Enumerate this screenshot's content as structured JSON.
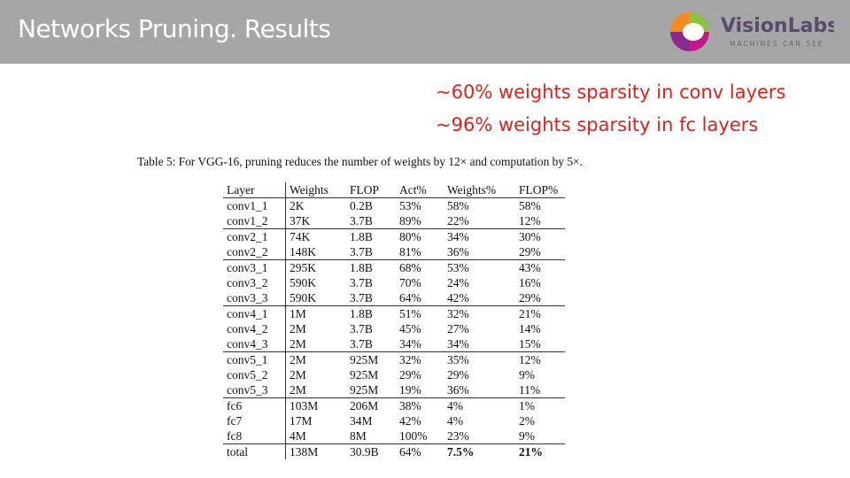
{
  "header": {
    "title": "Networks Pruning. Results",
    "logo": {
      "name": "VisionLabs",
      "tagline": "MACHINES CAN SEE"
    }
  },
  "highlights": [
    "~60% weights sparsity in conv layers",
    "~96% weights sparsity in fc layers"
  ],
  "table": {
    "caption": "Table 5: For VGG-16, pruning reduces the number of weights by 12× and computation by 5×.",
    "columns": [
      "Layer",
      "Weights",
      "FLOP",
      "Act%",
      "Weights%",
      "FLOP%"
    ],
    "rows": [
      [
        "conv1_1",
        "2K",
        "0.2B",
        "53%",
        "58%",
        "58%"
      ],
      [
        "conv1_2",
        "37K",
        "3.7B",
        "89%",
        "22%",
        "12%"
      ],
      [
        "conv2_1",
        "74K",
        "1.8B",
        "80%",
        "34%",
        "30%"
      ],
      [
        "conv2_2",
        "148K",
        "3.7B",
        "81%",
        "36%",
        "29%"
      ],
      [
        "conv3_1",
        "295K",
        "1.8B",
        "68%",
        "53%",
        "43%"
      ],
      [
        "conv3_2",
        "590K",
        "3.7B",
        "70%",
        "24%",
        "16%"
      ],
      [
        "conv3_3",
        "590K",
        "3.7B",
        "64%",
        "42%",
        "29%"
      ],
      [
        "conv4_1",
        "1M",
        "1.8B",
        "51%",
        "32%",
        "21%"
      ],
      [
        "conv4_2",
        "2M",
        "3.7B",
        "45%",
        "27%",
        "14%"
      ],
      [
        "conv4_3",
        "2M",
        "3.7B",
        "34%",
        "34%",
        "15%"
      ],
      [
        "conv5_1",
        "2M",
        "925M",
        "32%",
        "35%",
        "12%"
      ],
      [
        "conv5_2",
        "2M",
        "925M",
        "29%",
        "29%",
        "9%"
      ],
      [
        "conv5_3",
        "2M",
        "925M",
        "19%",
        "36%",
        "11%"
      ],
      [
        "fc6",
        "103M",
        "206M",
        "38%",
        "4%",
        "1%"
      ],
      [
        "fc7",
        "17M",
        "34M",
        "42%",
        "4%",
        "2%"
      ],
      [
        "fc8",
        "4M",
        "8M",
        "100%",
        "23%",
        "9%"
      ],
      [
        "total",
        "138M",
        "30.9B",
        "64%",
        "7.5%",
        "21%"
      ]
    ]
  }
}
